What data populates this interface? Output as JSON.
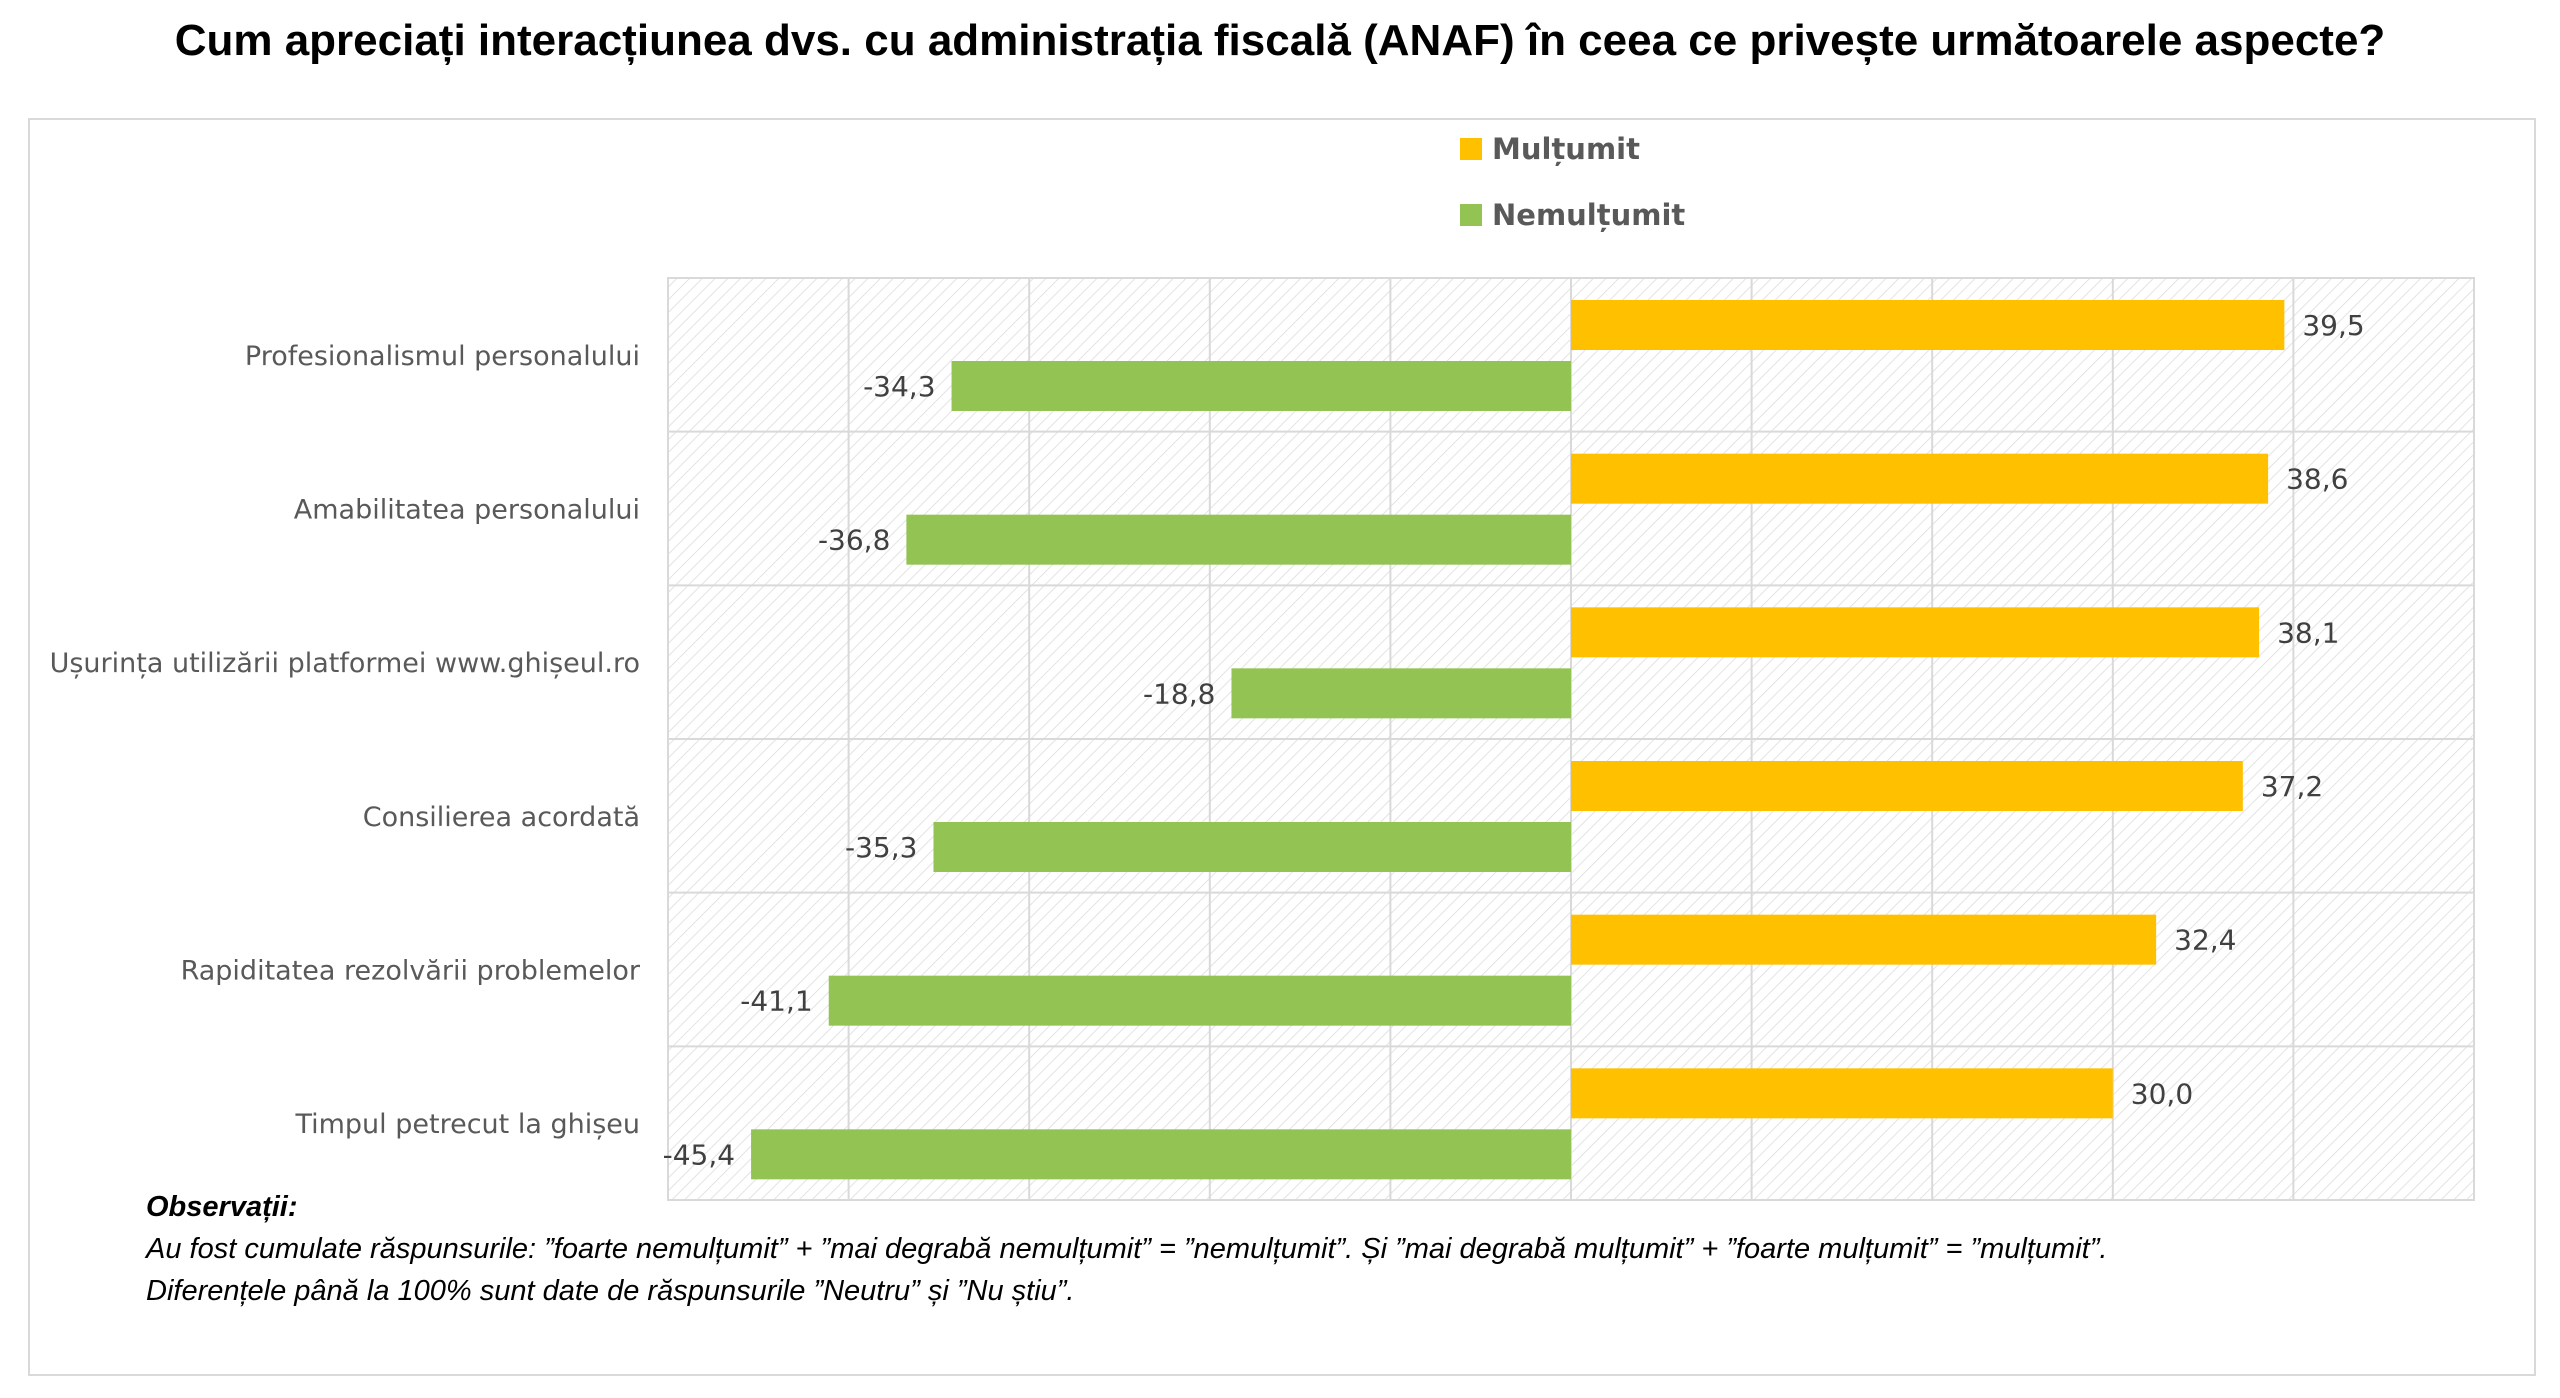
{
  "title": "Cum apreciați interacțiunea dvs. cu administrația fiscală (ANAF) în ceea ce privește următoarele aspecte?",
  "notes": {
    "heading": "Observații:",
    "lines": [
      "Au fost cumulate răspunsurile: ”foarte nemulțumit” + ”mai degrabă nemulțumit” = ”nemulțumit”. Și ”mai degrabă mulțumit” + ”foarte mulțumit” = ”mulțumit”.",
      "Diferențele până la 100% sunt date de răspunsurile ”Neutru” și ”Nu știu”."
    ]
  },
  "colors": {
    "satisfied": "#FFC000",
    "dissatisfied": "#92C353",
    "grid": "#d9d9d9",
    "frame": "#d9d9d9"
  },
  "chart_data": {
    "type": "bar",
    "orientation": "horizontal",
    "categories": [
      "Profesionalismul personalului",
      "Amabilitatea personalului",
      "Ușurința utilizării platformei www.ghișeul.ro",
      "Consilierea acordată",
      "Rapiditatea rezolvării problemelor",
      "Timpul petrecut la ghișeu"
    ],
    "series": [
      {
        "name": "Mulțumit",
        "values": [
          39.5,
          38.6,
          38.1,
          37.2,
          32.4,
          30.0
        ],
        "labels": [
          "39,5",
          "38,6",
          "38,1",
          "37,2",
          "32,4",
          "30,0"
        ]
      },
      {
        "name": "Nemulțumit",
        "values": [
          -34.3,
          -36.8,
          -18.8,
          -35.3,
          -41.1,
          -45.4
        ],
        "labels": [
          "-34,3",
          "-36,8",
          "-18,8",
          "-35,3",
          "-41,1",
          "-45,4"
        ]
      }
    ],
    "xlim": [
      -50,
      50
    ],
    "x_gridlines": [
      -40,
      -30,
      -20,
      -10,
      0,
      10,
      20,
      30,
      40
    ],
    "grid": true,
    "legend": "top-center",
    "background_pattern": "diagonal-hatch"
  }
}
